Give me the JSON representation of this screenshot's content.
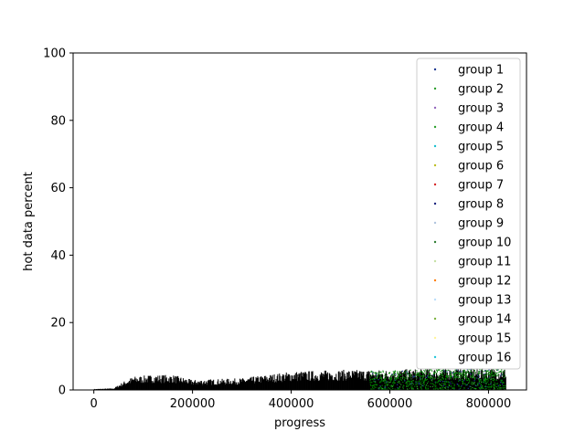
{
  "chart_data": {
    "type": "scatter",
    "title": "",
    "xlabel": "progress",
    "ylabel": "hot data percent",
    "xlim": [
      -42000,
      877000
    ],
    "ylim": [
      0,
      100
    ],
    "xticks": [
      0,
      200000,
      400000,
      600000,
      800000
    ],
    "xtick_labels": [
      "0",
      "200000",
      "400000",
      "600000",
      "800000"
    ],
    "yticks": [
      0,
      20,
      40,
      60,
      80,
      100
    ],
    "ytick_labels": [
      "0",
      "20",
      "40",
      "60",
      "80",
      "100"
    ],
    "grid": false,
    "legend_position": "upper-right",
    "x_range_of_points": [
      0,
      835000
    ],
    "envelope": {
      "x": [
        0,
        40000,
        60000,
        80000,
        120000,
        160000,
        200000,
        300000,
        400000,
        500000,
        600000,
        700000,
        835000
      ],
      "max_y": [
        0.3,
        0.5,
        2.5,
        4.0,
        4.5,
        4.5,
        3.0,
        3.5,
        5.5,
        6.0,
        6.0,
        6.5,
        6.5
      ]
    },
    "series": [
      {
        "name": "group 1",
        "color": "#1f3a93"
      },
      {
        "name": "group 2",
        "color": "#2ca02c"
      },
      {
        "name": "group 3",
        "color": "#9467bd"
      },
      {
        "name": "group 4",
        "color": "#2ca02c"
      },
      {
        "name": "group 5",
        "color": "#17becf"
      },
      {
        "name": "group 6",
        "color": "#bcbd22"
      },
      {
        "name": "group 7",
        "color": "#d62728"
      },
      {
        "name": "group 8",
        "color": "#1a237e"
      },
      {
        "name": "group 9",
        "color": "#b0c4de"
      },
      {
        "name": "group 10",
        "color": "#2e7d32"
      },
      {
        "name": "group 11",
        "color": "#c5e1a5"
      },
      {
        "name": "group 12",
        "color": "#ff7f0e"
      },
      {
        "name": "group 13",
        "color": "#bbdefb"
      },
      {
        "name": "group 14",
        "color": "#7cb342"
      },
      {
        "name": "group 15",
        "color": "#fff59d"
      },
      {
        "name": "group 16",
        "color": "#26c6da"
      }
    ]
  }
}
